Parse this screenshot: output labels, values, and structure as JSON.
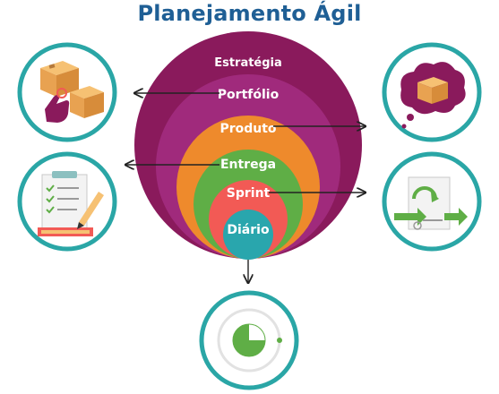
{
  "title": "Planejamento Ágil",
  "levels": [
    {
      "label": "Estratégia",
      "color": "#8a1a5c"
    },
    {
      "label": "Portfólio",
      "color": "#a02a7c"
    },
    {
      "label": "Produto",
      "color": "#ee8a2c"
    },
    {
      "label": "Entrega",
      "color": "#5fae46"
    },
    {
      "label": "Sprint",
      "color": "#f25a55"
    },
    {
      "label": "Diário",
      "color": "#29a6ad"
    }
  ],
  "icons": {
    "top_left": "boxes-pointing-hand-icon",
    "top_right": "box-thought-bubble-icon",
    "mid_left": "checklist-pencil-icon",
    "mid_right": "cycle-document-icon",
    "bottom": "stopwatch-icon"
  },
  "colors": {
    "title": "#1f5f95",
    "circle_ring": "#2aa6a6",
    "icon_fill": "#ecf6f6"
  }
}
